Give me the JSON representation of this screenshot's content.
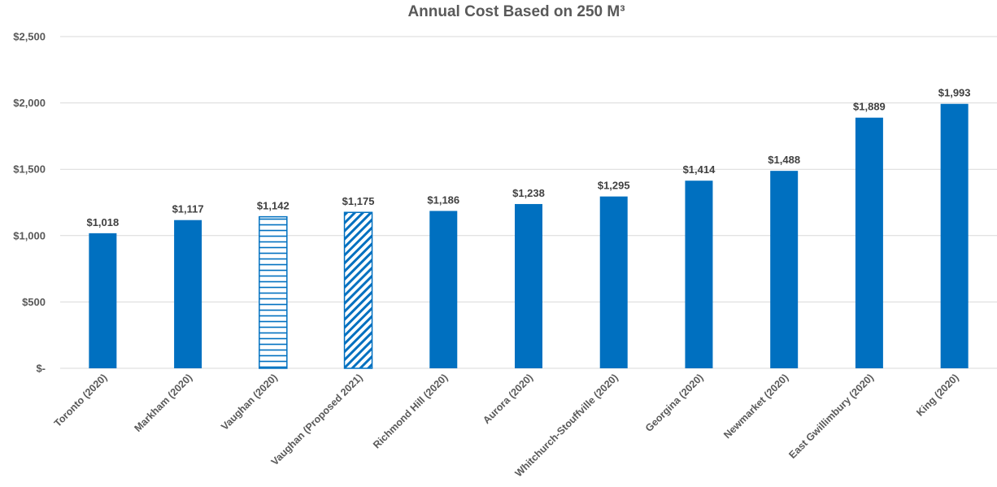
{
  "chart_data": {
    "type": "bar",
    "title": "Annual Cost Based on 250 M³",
    "xlabel": "",
    "ylabel": "",
    "ylim": [
      0,
      2500
    ],
    "y_ticks": [
      0,
      500,
      1000,
      1500,
      2000,
      2500
    ],
    "y_tick_labels": [
      "$-",
      "$500",
      "$1,000",
      "$1,500",
      "$2,000",
      "$2,500"
    ],
    "grid": true,
    "legend": "none",
    "bar_color": "#0070C0",
    "categories": [
      "Toronto (2020)",
      "Markham (2020)",
      "Vaughan (2020)",
      "Vaughan (Proposed 2021)",
      "Richmond Hill (2020)",
      "Aurora (2020)",
      "Whitchurch-Stouffville (2020)",
      "Georgina (2020)",
      "Newmarket (2020)",
      "East Gwillimbury (2020)",
      "King (2020)"
    ],
    "values": [
      1018,
      1117,
      1142,
      1175,
      1186,
      1238,
      1295,
      1414,
      1488,
      1889,
      1993
    ],
    "data_labels": [
      "$1,018",
      "$1,117",
      "$1,142",
      "$1,175",
      "$1,186",
      "$1,238",
      "$1,295",
      "$1,414",
      "$1,488",
      "$1,889",
      "$1,993"
    ],
    "bar_fills": [
      "solid",
      "solid",
      "horizontal-stripes",
      "diagonal-stripes",
      "solid",
      "solid",
      "solid",
      "solid",
      "solid",
      "solid",
      "solid"
    ]
  }
}
